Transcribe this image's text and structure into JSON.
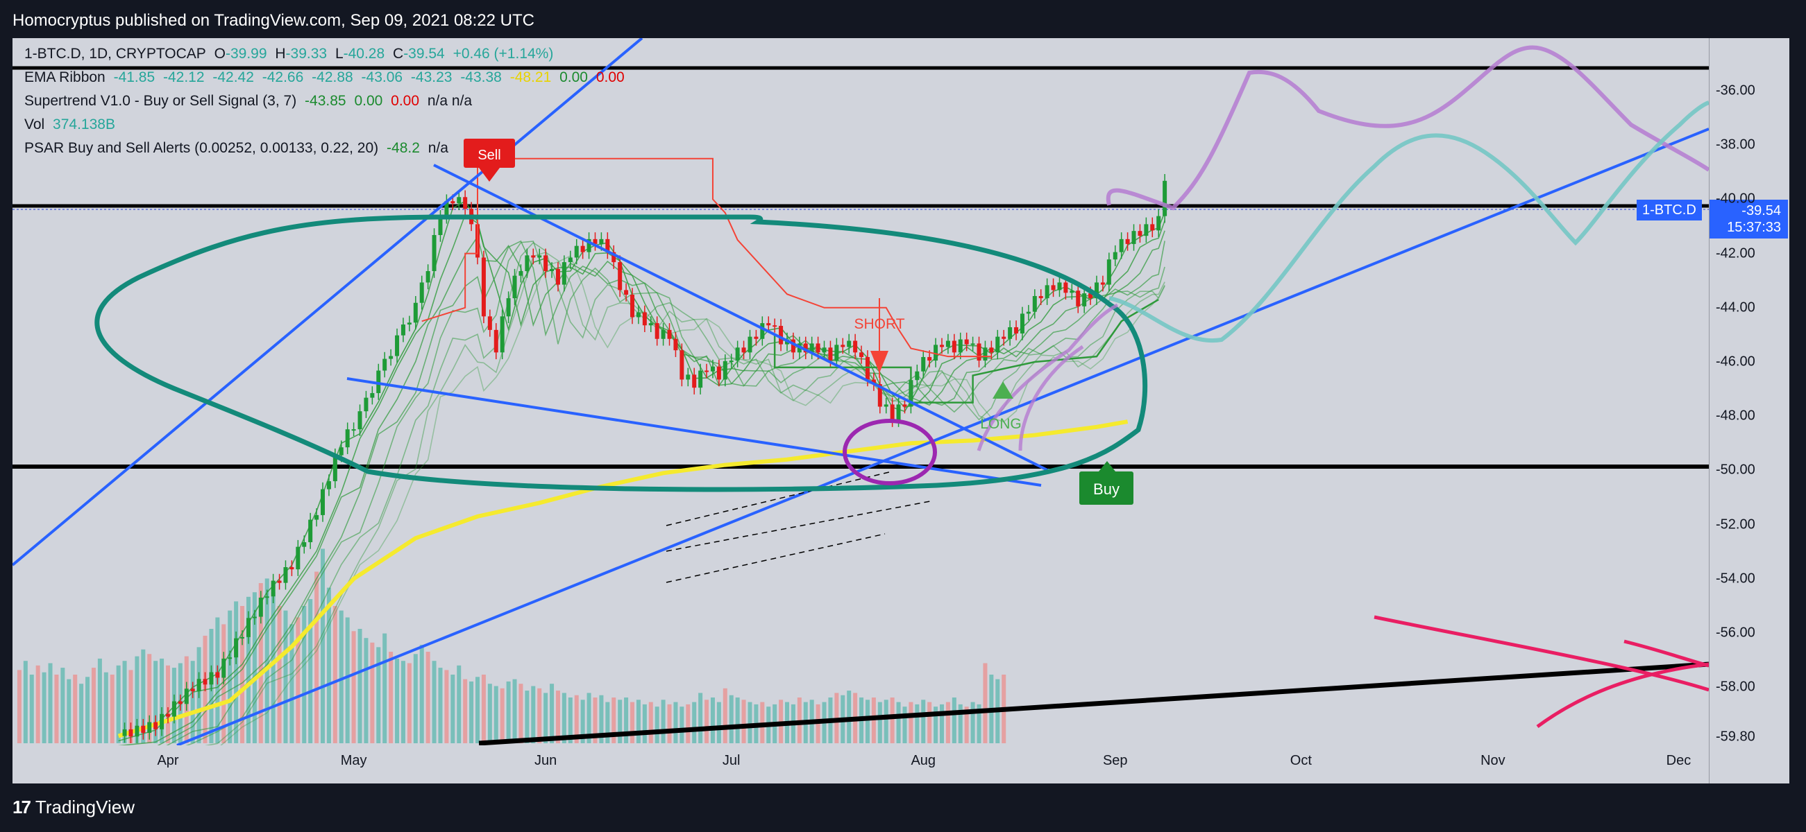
{
  "header": {
    "published": "Homocryptus published on TradingView.com, Sep 09, 2021 08:22 UTC"
  },
  "legend": {
    "line1": "1-BTC.D, 1D, CRYPTOCAP",
    "o": "O",
    "o_val": "-39.99",
    "h": "H",
    "h_val": "-39.33",
    "l": "L",
    "l_val": "-40.28",
    "c": "C",
    "c_val": "-39.54",
    "change": "+0.46 (+1.14%)",
    "ema_name": "EMA Ribbon",
    "ema_vals": [
      "-41.85",
      "-42.12",
      "-42.42",
      "-42.66",
      "-42.88",
      "-43.06",
      "-43.23",
      "-43.38"
    ],
    "ema_y": "-48.21",
    "ema_z1": "0.00",
    "ema_z2": "0.00",
    "st_name": "Supertrend V1.0 - Buy or Sell Signal (3, 7)",
    "st_val": "-43.85",
    "st_z1": "0.00",
    "st_z2": "0.00",
    "st_na": "n/a n/a",
    "vol_name": "Vol",
    "vol_val": "374.138B",
    "psar_name": "PSAR Buy and Sell Alerts (0.00252, 0.00133, 0.22, 20)",
    "psar_val": "-48.2",
    "psar_na": "n/a"
  },
  "chart_data": {
    "type": "candlestick",
    "symbol": "1-BTC.D",
    "timeframe": "1D",
    "ylim": [
      -59.8,
      -34.8
    ],
    "price_ticks": [
      "-36.00",
      "-38.00",
      "-40.00",
      "-42.00",
      "-44.00",
      "-46.00",
      "-48.00",
      "-50.00",
      "-52.00",
      "-54.00",
      "-56.00",
      "-58.00",
      "-59.80"
    ],
    "price_tick_values": [
      -36,
      -38,
      -40,
      -42,
      -44,
      -46,
      -48,
      -50,
      -52,
      -54,
      -56,
      -58,
      -59.8
    ],
    "time_ticks": [
      "Apr",
      "May",
      "Jun",
      "Jul",
      "Aug",
      "Sep",
      "Oct",
      "Nov",
      "Dec"
    ],
    "time_tick_days": [
      0,
      30,
      61,
      91,
      122,
      153,
      183,
      214,
      244
    ],
    "x_unit": "days since Apr 1, 2021",
    "close_path": [
      [
        -8,
        -59.8
      ],
      [
        -2,
        -59.4
      ],
      [
        4,
        -58.0
      ],
      [
        8,
        -57.5
      ],
      [
        12,
        -56.0
      ],
      [
        16,
        -54.5
      ],
      [
        20,
        -53.5
      ],
      [
        24,
        -51.5
      ],
      [
        28,
        -49.0
      ],
      [
        31,
        -48.0
      ],
      [
        34,
        -46.5
      ],
      [
        37,
        -45.2
      ],
      [
        40,
        -44.0
      ],
      [
        42,
        -42.5
      ],
      [
        44,
        -40.5
      ],
      [
        46,
        -40.0
      ],
      [
        48,
        -40.2
      ],
      [
        50,
        -42.0
      ],
      [
        51,
        -44.5
      ],
      [
        53,
        -45.5
      ],
      [
        55,
        -43.5
      ],
      [
        57,
        -42.5
      ],
      [
        59,
        -42.0
      ],
      [
        61,
        -42.5
      ],
      [
        63,
        -43.0
      ],
      [
        65,
        -42.0
      ],
      [
        67,
        -41.8
      ],
      [
        69,
        -41.5
      ],
      [
        71,
        -41.8
      ],
      [
        73,
        -43.2
      ],
      [
        75,
        -44.2
      ],
      [
        77,
        -44.5
      ],
      [
        79,
        -45.0
      ],
      [
        81,
        -45.0
      ],
      [
        83,
        -46.5
      ],
      [
        85,
        -46.8
      ],
      [
        87,
        -46.2
      ],
      [
        89,
        -46.5
      ],
      [
        91,
        -45.8
      ],
      [
        93,
        -45.5
      ],
      [
        95,
        -45.0
      ],
      [
        97,
        -44.5
      ],
      [
        99,
        -45.2
      ],
      [
        101,
        -45.5
      ],
      [
        103,
        -45.5
      ],
      [
        105,
        -45.5
      ],
      [
        107,
        -45.8
      ],
      [
        109,
        -45.3
      ],
      [
        111,
        -45.5
      ],
      [
        113,
        -46.5
      ],
      [
        115,
        -47.5
      ],
      [
        117,
        -48.0
      ],
      [
        119,
        -47.5
      ],
      [
        121,
        -46.2
      ],
      [
        123,
        -45.8
      ],
      [
        125,
        -45.3
      ],
      [
        127,
        -45.5
      ],
      [
        129,
        -45.2
      ],
      [
        131,
        -45.8
      ],
      [
        133,
        -45.5
      ],
      [
        135,
        -45.0
      ],
      [
        137,
        -44.8
      ],
      [
        139,
        -44.0
      ],
      [
        141,
        -43.5
      ],
      [
        143,
        -43.2
      ],
      [
        145,
        -43.3
      ],
      [
        147,
        -43.8
      ],
      [
        149,
        -43.5
      ],
      [
        151,
        -43.0
      ],
      [
        153,
        -41.8
      ],
      [
        155,
        -41.5
      ],
      [
        157,
        -41.2
      ],
      [
        159,
        -41.0
      ],
      [
        160,
        -40.8
      ],
      [
        161,
        -39.5
      ]
    ],
    "ema_long_path": [
      [
        -8,
        -59.8
      ],
      [
        10,
        -58.5
      ],
      [
        20,
        -56.5
      ],
      [
        30,
        -54.0
      ],
      [
        40,
        -52.5
      ],
      [
        50,
        -51.7
      ],
      [
        60,
        -51.2
      ],
      [
        70,
        -50.6
      ],
      [
        80,
        -50.1
      ],
      [
        90,
        -49.8
      ],
      [
        100,
        -49.6
      ],
      [
        110,
        -49.3
      ],
      [
        120,
        -49.0
      ],
      [
        130,
        -48.9
      ],
      [
        140,
        -48.7
      ],
      [
        150,
        -48.4
      ],
      [
        155,
        -48.2
      ]
    ],
    "volume": [
      0.32,
      0.36,
      0.3,
      0.34,
      0.31,
      0.35,
      0.3,
      0.33,
      0.28,
      0.3,
      0.26,
      0.29,
      0.33,
      0.37,
      0.31,
      0.3,
      0.34,
      0.36,
      0.32,
      0.38,
      0.41,
      0.39,
      0.36,
      0.37,
      0.34,
      0.33,
      0.35,
      0.38,
      0.36,
      0.42,
      0.47,
      0.5,
      0.55,
      0.52,
      0.58,
      0.62,
      0.6,
      0.64,
      0.66,
      0.7,
      0.72,
      0.66,
      0.6,
      0.58,
      0.52,
      0.55,
      0.6,
      0.63,
      0.75,
      0.85,
      0.68,
      0.6,
      0.58,
      0.55,
      0.49,
      0.5,
      0.46,
      0.44,
      0.42,
      0.48,
      0.4,
      0.37,
      0.36,
      0.35,
      0.39,
      0.43,
      0.4,
      0.36,
      0.33,
      0.32,
      0.3,
      0.34,
      0.28,
      0.27,
      0.29,
      0.3,
      0.26,
      0.25,
      0.24,
      0.27,
      0.28,
      0.26,
      0.23,
      0.25,
      0.24,
      0.22,
      0.26,
      0.23,
      0.22,
      0.2,
      0.21,
      0.19,
      0.22,
      0.2,
      0.21,
      0.18,
      0.2,
      0.19,
      0.2,
      0.18,
      0.19,
      0.17,
      0.18,
      0.16,
      0.19,
      0.17,
      0.18,
      0.16,
      0.17,
      0.18,
      0.22,
      0.19,
      0.2,
      0.18,
      0.24,
      0.21,
      0.2,
      0.19,
      0.18,
      0.17,
      0.18,
      0.16,
      0.17,
      0.19,
      0.18,
      0.17,
      0.2,
      0.18,
      0.19,
      0.17,
      0.18,
      0.2,
      0.22,
      0.21,
      0.23,
      0.22,
      0.2,
      0.19,
      0.2,
      0.18,
      0.19,
      0.2,
      0.18,
      0.16,
      0.18,
      0.17,
      0.19,
      0.18,
      0.16,
      0.17,
      0.18,
      0.2,
      0.17,
      0.16,
      0.18,
      0.17,
      0.35,
      0.3,
      0.28,
      0.3
    ],
    "annotations": {
      "sell": "Sell",
      "short": "SHORT",
      "long": "LONG",
      "buy": "Buy"
    },
    "grid": false
  },
  "last_price": {
    "symbol": "1-BTC.D",
    "price": "-39.54",
    "countdown": "15:37:33"
  },
  "footer": {
    "brand": "TradingView",
    "logo": "17"
  },
  "colors": {
    "bg": "#131722",
    "pane": "#d1d4dc",
    "up": "#26a69a",
    "down": "#ef5350",
    "candle_up": "#1e9b37",
    "candle_down": "#e31c1c",
    "blue_line": "#2962ff",
    "teal_circle": "#138a7a",
    "purple": "#9c27b0",
    "yellow": "#f5ea2e",
    "pink": "#e91e63"
  }
}
